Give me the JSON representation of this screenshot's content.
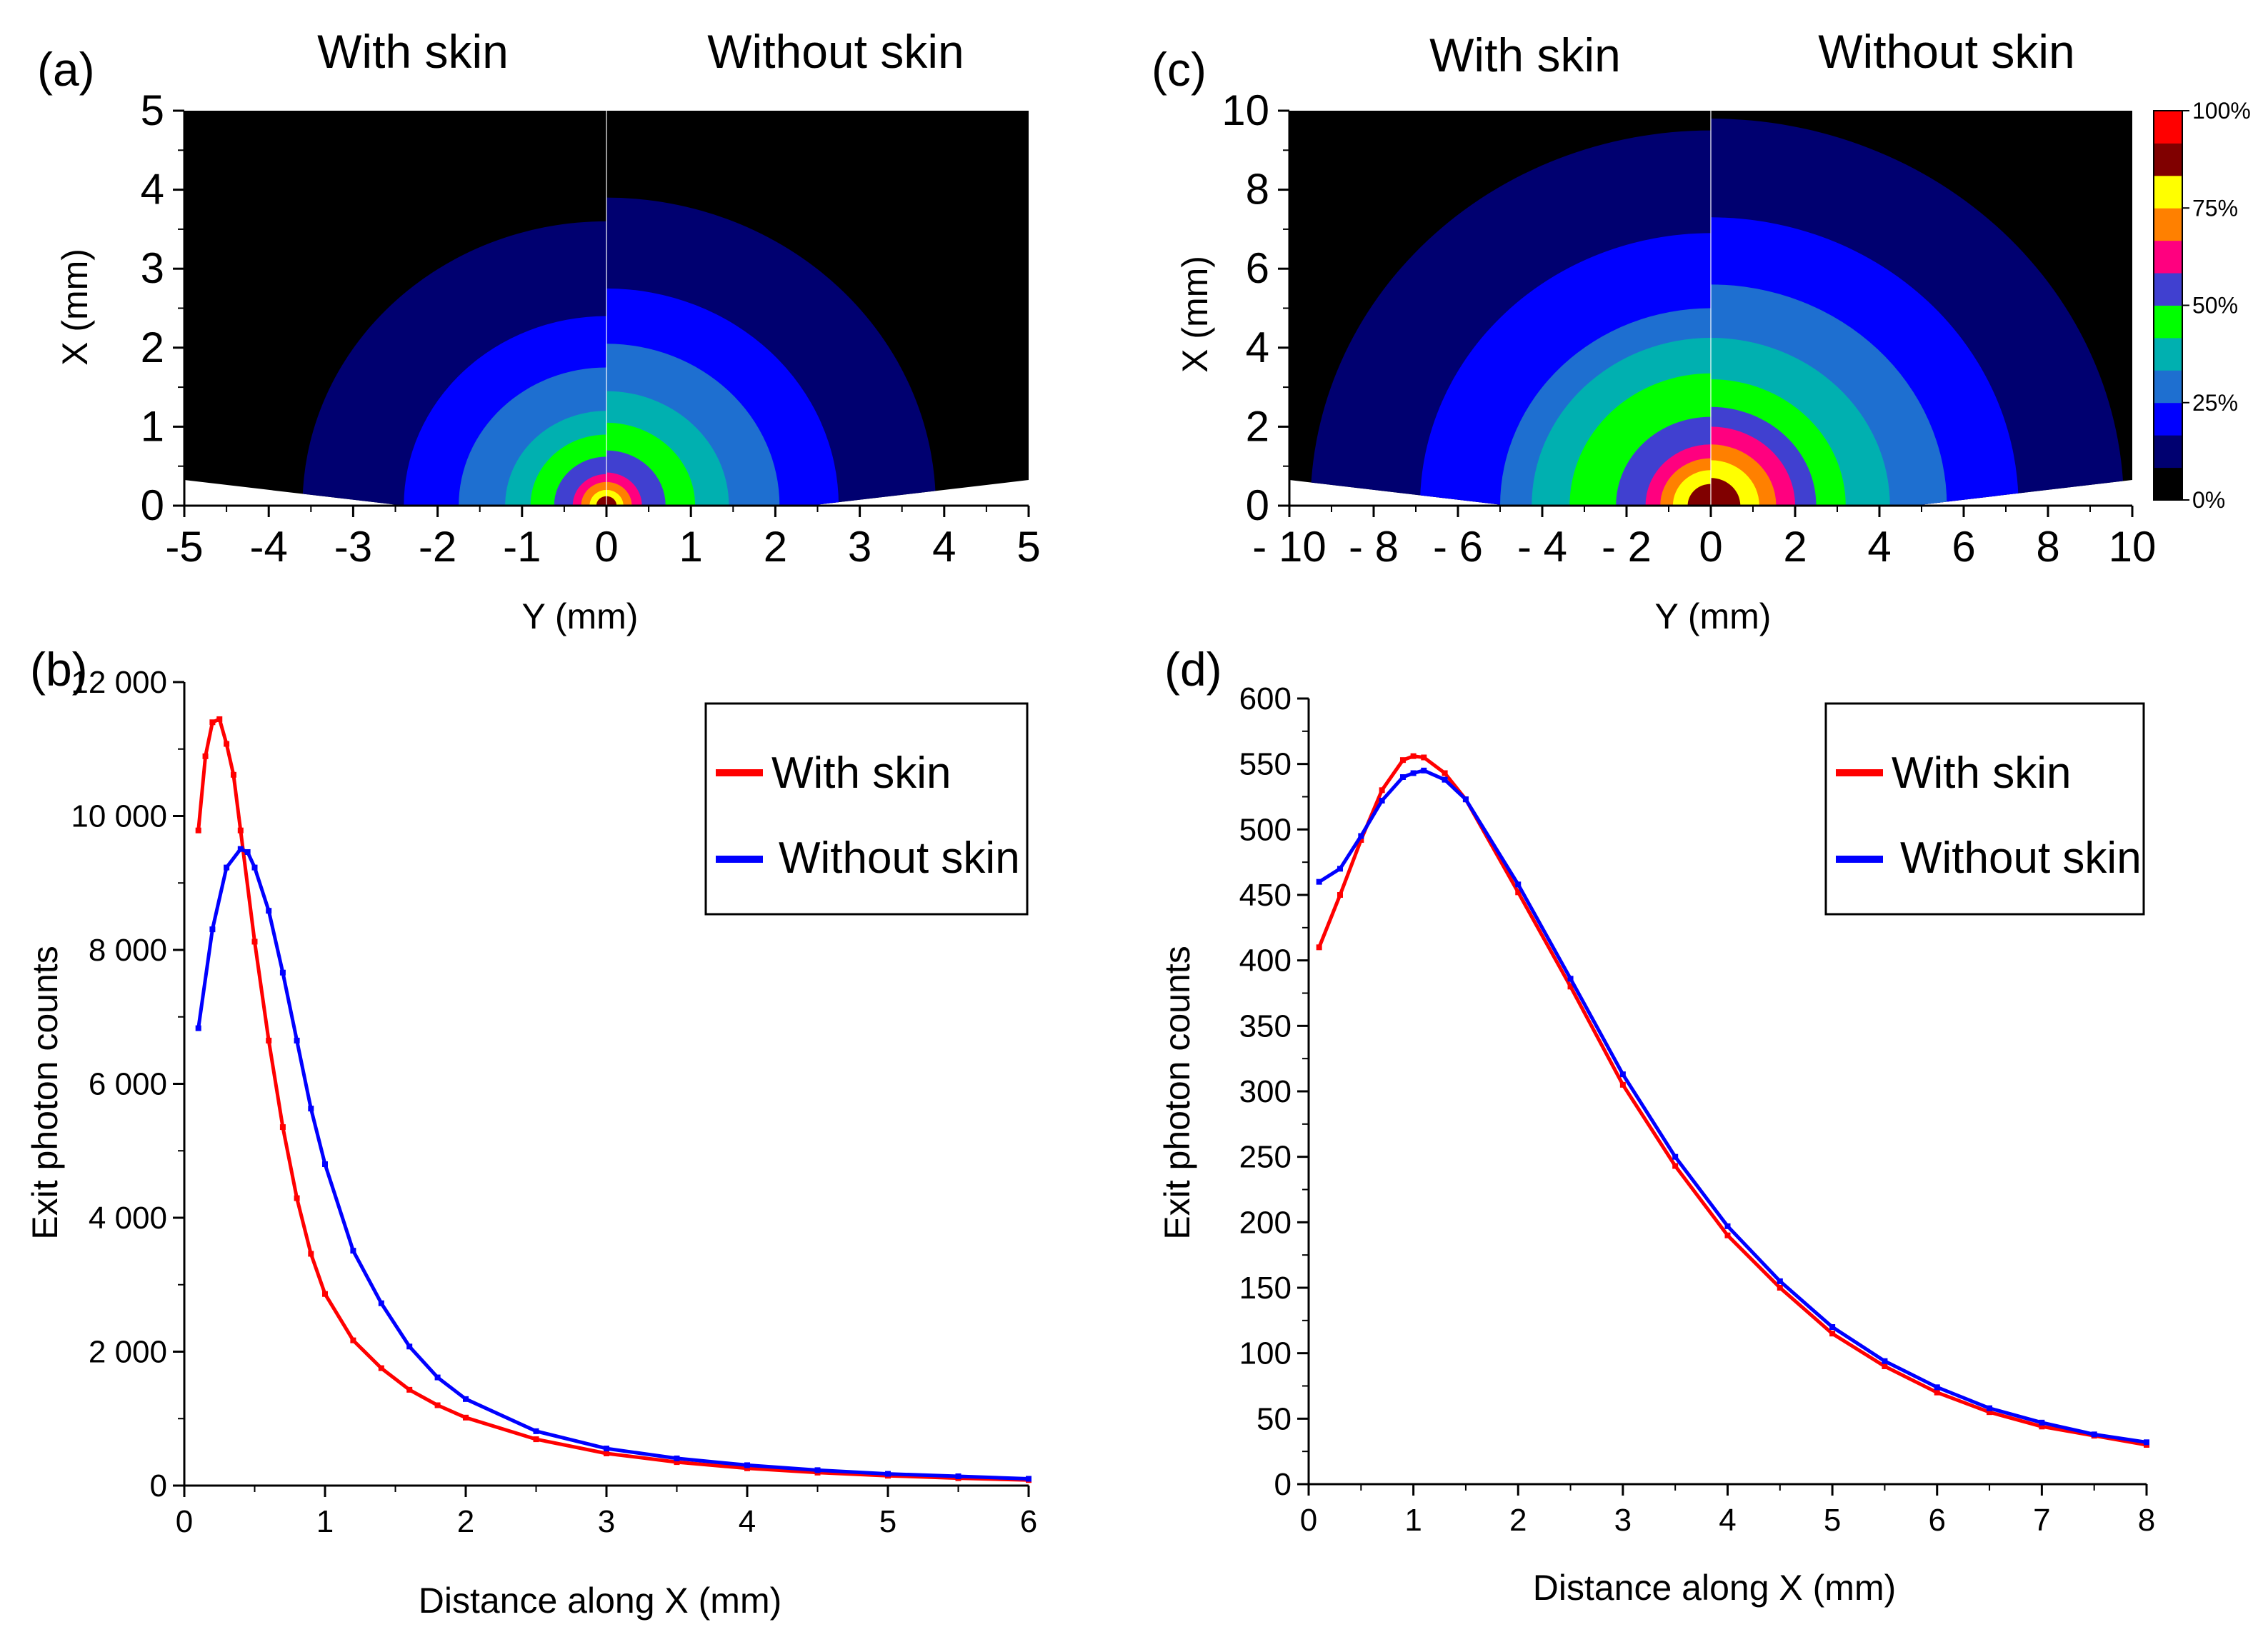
{
  "colors": {
    "with_skin": "#ff0000",
    "without_skin": "#0000ff",
    "heatmap_levels": [
      "#000000",
      "#000070",
      "#0000ff",
      "#1e6fd0",
      "#00b0b0",
      "#00ff00",
      "#4040d0",
      "#ff007f",
      "#ff8000",
      "#ffff00",
      "#800000",
      "#ff0000"
    ]
  },
  "chart_data": [
    {
      "panel": "(a)",
      "type": "heatmap",
      "header_left": "With skin",
      "header_right": "Without skin",
      "xlabel": "Y (mm)",
      "ylabel": "X (mm)",
      "xlim": [
        -5,
        5
      ],
      "ylim": [
        0,
        5
      ],
      "xticks": [
        "-5",
        "-4",
        "-3",
        "-2",
        "-1",
        "0",
        "1",
        "2",
        "3",
        "4",
        "5"
      ],
      "yticks": [
        "0",
        "1",
        "2",
        "3",
        "4",
        "5"
      ],
      "ring_radii": {
        "left": [
          3.6,
          2.4,
          1.75,
          1.2,
          0.9,
          0.62,
          0.4,
          0.3,
          0.2,
          0.12
        ],
        "right": [
          3.9,
          2.75,
          2.05,
          1.45,
          1.05,
          0.7,
          0.42,
          0.3,
          0.2,
          0.12
        ]
      }
    },
    {
      "panel": "(b)",
      "type": "line",
      "xlabel": "Distance along X (mm)",
      "ylabel": "Exit photon counts",
      "xlim": [
        0,
        6
      ],
      "ylim": [
        0,
        13000
      ],
      "xticks": [
        "0",
        "1",
        "2",
        "3",
        "4",
        "5",
        "6"
      ],
      "yticks": [
        "0",
        "2 000",
        "4 000",
        "6 000",
        "8 000",
        "10 000",
        "12 000"
      ],
      "series": [
        {
          "name": "With skin",
          "x": [
            0.1,
            0.15,
            0.2,
            0.25,
            0.3,
            0.35,
            0.4,
            0.5,
            0.6,
            0.7,
            0.8,
            0.9,
            1.0,
            1.2,
            1.4,
            1.6,
            1.8,
            2.0,
            2.5,
            3.0,
            3.5,
            4.0,
            4.5,
            5.0,
            5.5,
            6.0
          ],
          "values": [
            10600,
            11800,
            12350,
            12400,
            12000,
            11500,
            10600,
            8800,
            7200,
            5800,
            4650,
            3750,
            3100,
            2350,
            1900,
            1550,
            1300,
            1100,
            750,
            520,
            380,
            280,
            210,
            160,
            120,
            90
          ]
        },
        {
          "name": "Without skin",
          "x": [
            0.1,
            0.2,
            0.3,
            0.4,
            0.45,
            0.5,
            0.6,
            0.7,
            0.8,
            0.9,
            1.0,
            1.2,
            1.4,
            1.6,
            1.8,
            2.0,
            2.5,
            3.0,
            3.5,
            4.0,
            4.5,
            5.0,
            5.5,
            6.0
          ],
          "values": [
            7400,
            9000,
            10000,
            10300,
            10250,
            10000,
            9300,
            8300,
            7200,
            6100,
            5200,
            3800,
            2950,
            2250,
            1750,
            1400,
            880,
            600,
            440,
            330,
            250,
            190,
            150,
            110
          ]
        }
      ],
      "legend": "top-right"
    },
    {
      "panel": "(c)",
      "type": "heatmap",
      "header_left": "With skin",
      "header_right": "Without skin",
      "xlabel": "Y (mm)",
      "ylabel": "X (mm)",
      "xlim": [
        -10,
        10
      ],
      "ylim": [
        0,
        10
      ],
      "xticks": [
        "- 10",
        "- 8",
        "- 6",
        "- 4",
        "- 2",
        "0",
        "2",
        "4",
        "6",
        "8",
        "10"
      ],
      "yticks": [
        "0",
        "2",
        "4",
        "6",
        "8",
        "10"
      ],
      "colorbar": [
        "100%",
        "75%",
        "50%",
        "25%",
        "0%"
      ],
      "ring_radii": {
        "left": [
          9.5,
          6.9,
          5.0,
          4.25,
          3.35,
          2.25,
          1.55,
          1.2,
          0.9,
          0.55
        ],
        "right": [
          9.8,
          7.3,
          5.6,
          4.25,
          3.2,
          2.5,
          2.0,
          1.55,
          1.15,
          0.7
        ]
      }
    },
    {
      "panel": "(d)",
      "type": "line",
      "xlabel": "Distance along X (mm)",
      "ylabel": "Exit photon counts",
      "xlim": [
        0,
        8
      ],
      "ylim": [
        0,
        600
      ],
      "xticks": [
        "0",
        "1",
        "2",
        "3",
        "4",
        "5",
        "6",
        "7",
        "8"
      ],
      "yticks": [
        "0",
        "50",
        "100",
        "150",
        "200",
        "250",
        "300",
        "350",
        "400",
        "450",
        "500",
        "550",
        "600"
      ],
      "series": [
        {
          "name": "With skin",
          "x": [
            0.1,
            0.3,
            0.5,
            0.7,
            0.9,
            1.0,
            1.1,
            1.3,
            1.5,
            2.0,
            2.5,
            3.0,
            3.5,
            4.0,
            4.5,
            5.0,
            5.5,
            6.0,
            6.5,
            7.0,
            7.5,
            8.0
          ],
          "values": [
            410,
            450,
            492,
            530,
            553,
            556,
            555,
            543,
            523,
            452,
            380,
            305,
            243,
            190,
            150,
            115,
            90,
            70,
            55,
            44,
            37,
            30
          ]
        },
        {
          "name": "Without skin",
          "x": [
            0.1,
            0.3,
            0.5,
            0.7,
            0.9,
            1.0,
            1.1,
            1.3,
            1.5,
            2.0,
            2.5,
            3.0,
            3.5,
            4.0,
            4.5,
            5.0,
            5.5,
            6.0,
            6.5,
            7.0,
            7.5,
            8.0
          ],
          "values": [
            460,
            470,
            495,
            522,
            540,
            543,
            545,
            538,
            523,
            458,
            386,
            313,
            250,
            197,
            155,
            120,
            94,
            74,
            58,
            47,
            38,
            32
          ]
        }
      ],
      "legend": "top-right"
    }
  ]
}
